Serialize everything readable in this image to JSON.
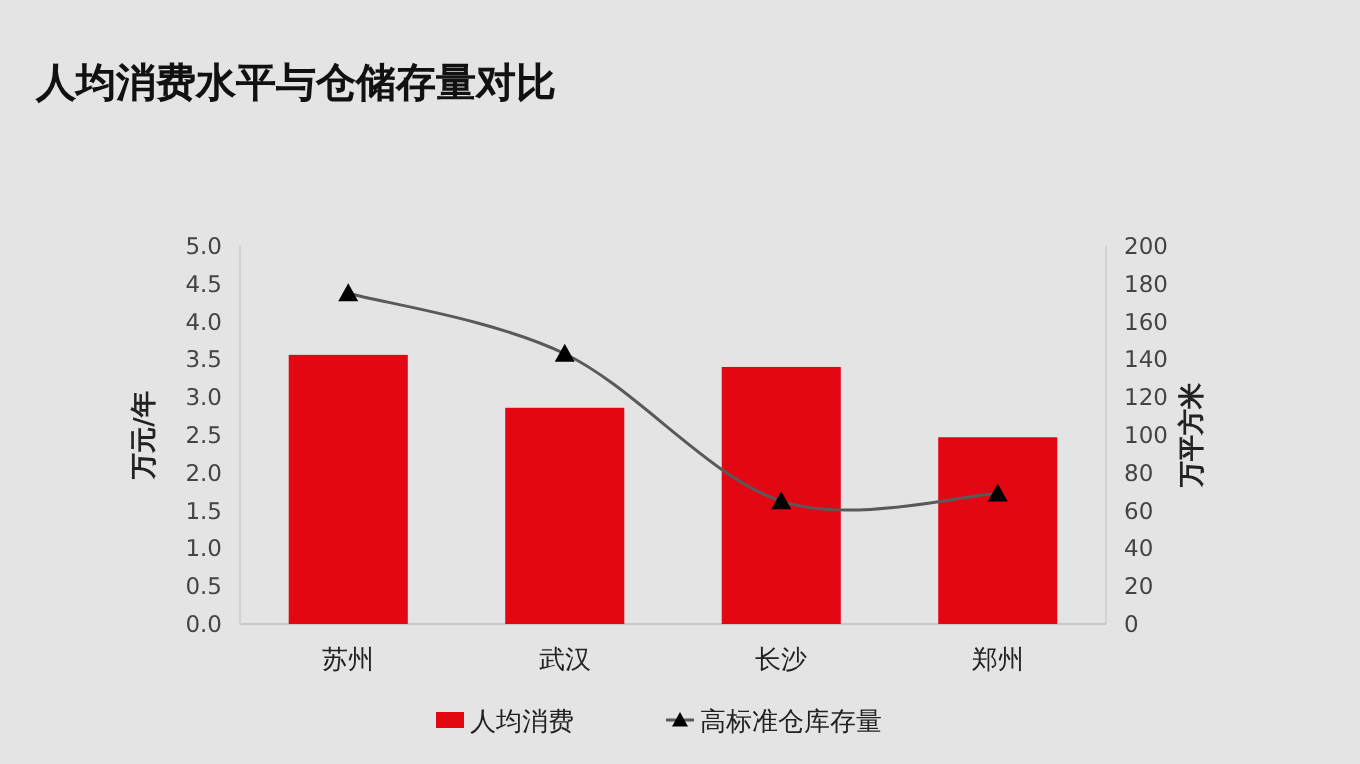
{
  "chart_data": {
    "type": "bar",
    "title": "人均消费水平与仓储存量对比",
    "ylabel": "万元/年",
    "y2label": "万平方米",
    "categories": [
      "苏州",
      "武汉",
      "长沙",
      "郑州"
    ],
    "series": [
      {
        "name": "人均消费",
        "color": "#e30613",
        "values": [
          3.56,
          2.86,
          3.4,
          2.47
        ]
      },
      {
        "name": "高标准仓库存量",
        "type": "line",
        "axis": "y2",
        "color": "#595959",
        "marker": "triangle",
        "values": [
          175,
          143,
          65,
          69
        ]
      }
    ],
    "ylim": [
      0,
      5
    ],
    "yticks": [
      {
        "value": 0,
        "label": "0.0"
      },
      {
        "value": 0.5,
        "label": "0.5"
      },
      {
        "value": 1,
        "label": "1.0"
      },
      {
        "value": 1.5,
        "label": "1.5"
      },
      {
        "value": 2,
        "label": "2.0"
      },
      {
        "value": 2.5,
        "label": "2.5"
      },
      {
        "value": 3,
        "label": "3.0"
      },
      {
        "value": 3.5,
        "label": "3.5"
      },
      {
        "value": 4,
        "label": "4.0"
      },
      {
        "value": 4.5,
        "label": "4.5"
      },
      {
        "value": 5,
        "label": "5.0"
      }
    ],
    "y2lim": [
      0,
      200
    ],
    "y2ticks": [
      0,
      20,
      40,
      60,
      80,
      100,
      120,
      140,
      160,
      180,
      200
    ],
    "legend": "bottom",
    "grid": false
  }
}
